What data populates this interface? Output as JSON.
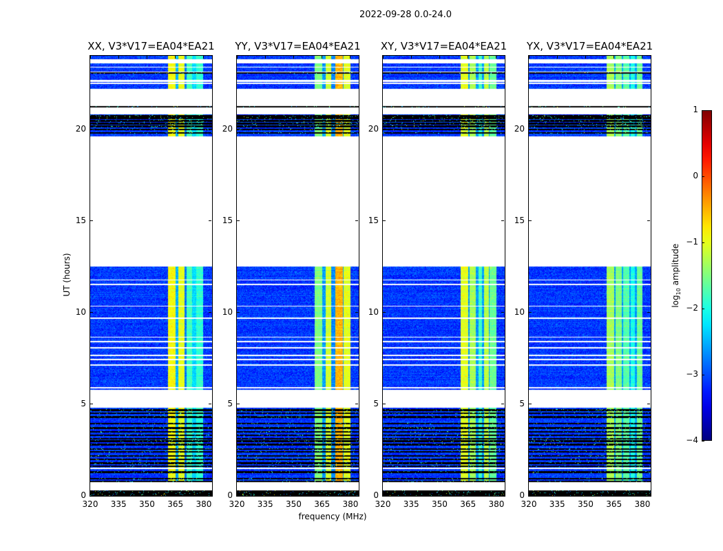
{
  "chart_data": {
    "type": "heatmap",
    "title": "2022-09-28 0.0-24.0",
    "xlabel": "frequency (MHz)",
    "ylabel": "UT (hours)",
    "xlim": [
      320,
      384.4
    ],
    "ylim": [
      0,
      24
    ],
    "xticks": [
      320,
      335,
      350,
      365,
      380
    ],
    "yticks": [
      0,
      5,
      10,
      15,
      20
    ],
    "colorbar": {
      "label_main": "log",
      "label_sub": "10",
      "label_rest": " amplitude",
      "range": [
        -4,
        1
      ],
      "ticks": [
        1,
        0,
        -1,
        -2,
        -3,
        -4
      ],
      "colormap": "jet"
    },
    "background_level": -3.1,
    "time_segments": [
      {
        "start": 0.0,
        "end": 0.3,
        "state": "flagged"
      },
      {
        "start": 0.3,
        "end": 0.75,
        "state": "gap"
      },
      {
        "start": 0.75,
        "end": 4.8,
        "state": "data"
      },
      {
        "start": 4.8,
        "end": 5.8,
        "state": "gap"
      },
      {
        "start": 5.8,
        "end": 12.5,
        "state": "data"
      },
      {
        "start": 12.5,
        "end": 19.6,
        "state": "gap"
      },
      {
        "start": 19.6,
        "end": 20.8,
        "state": "data"
      },
      {
        "start": 20.8,
        "end": 21.2,
        "state": "gap"
      },
      {
        "start": 21.2,
        "end": 21.26,
        "state": "flagged"
      },
      {
        "start": 21.26,
        "end": 22.2,
        "state": "gap"
      },
      {
        "start": 22.2,
        "end": 23.6,
        "state": "data"
      },
      {
        "start": 23.6,
        "end": 23.8,
        "state": "gap"
      },
      {
        "start": 23.8,
        "end": 24.0,
        "state": "data"
      }
    ],
    "flagged_rows_hours": [
      0.8,
      0.95,
      1.3,
      1.62,
      1.78,
      2.0,
      2.18,
      2.4,
      2.56,
      2.8,
      2.98,
      3.12,
      3.3,
      3.5,
      3.7,
      3.95,
      4.3,
      4.5,
      4.68,
      19.8,
      19.98,
      20.15,
      20.3,
      20.45,
      20.6,
      20.72,
      23.05
    ],
    "blank_rows_hours": [
      1.5,
      5.9,
      7.14,
      7.44,
      7.67,
      8.08,
      8.42,
      8.65,
      9.7,
      10.34,
      11.54,
      11.77,
      22.5,
      22.6,
      22.67,
      23.12,
      23.38
    ],
    "series": [
      {
        "name": "XX, V3*V17=EA04*EA21",
        "bands": [
          [
            361,
            365,
            -0.9
          ],
          [
            365,
            366.5,
            -2.5
          ],
          [
            366.5,
            370,
            -1.0
          ],
          [
            370,
            371,
            -2.8
          ],
          [
            371,
            374,
            -1.8
          ],
          [
            374,
            376,
            -2.3
          ],
          [
            376,
            379.5,
            -1.9
          ]
        ]
      },
      {
        "name": "YY, V3*V17=EA04*EA21",
        "bands": [
          [
            361,
            365,
            -1.5
          ],
          [
            365,
            367,
            -2.6
          ],
          [
            367,
            370,
            -1.1
          ],
          [
            370,
            372,
            -2.7
          ],
          [
            372,
            376,
            -0.5
          ],
          [
            376,
            376.5,
            -2.6
          ],
          [
            376.5,
            380,
            -1.0
          ]
        ]
      },
      {
        "name": "XY, V3*V17=EA04*EA21",
        "bands": [
          [
            361,
            365,
            -1.0
          ],
          [
            365,
            366,
            -2.6
          ],
          [
            366,
            369,
            -1.3
          ],
          [
            369,
            370.5,
            -2.6
          ],
          [
            370.5,
            372.5,
            -1.8
          ],
          [
            372.5,
            373.5,
            -2.6
          ],
          [
            373.5,
            376,
            -1.2
          ],
          [
            376,
            376.5,
            -2.6
          ],
          [
            376.5,
            380,
            -1.6
          ]
        ]
      },
      {
        "name": "YX, V3*V17=EA04*EA21",
        "bands": [
          [
            361,
            365,
            -1.3
          ],
          [
            365,
            366,
            -2.6
          ],
          [
            366,
            369,
            -1.5
          ],
          [
            369,
            370,
            -2.6
          ],
          [
            370,
            373,
            -1.7
          ],
          [
            373,
            374,
            -2.6
          ],
          [
            374,
            376,
            -2.0
          ],
          [
            376,
            377,
            -2.6
          ],
          [
            377,
            380,
            -1.6
          ]
        ]
      }
    ]
  }
}
